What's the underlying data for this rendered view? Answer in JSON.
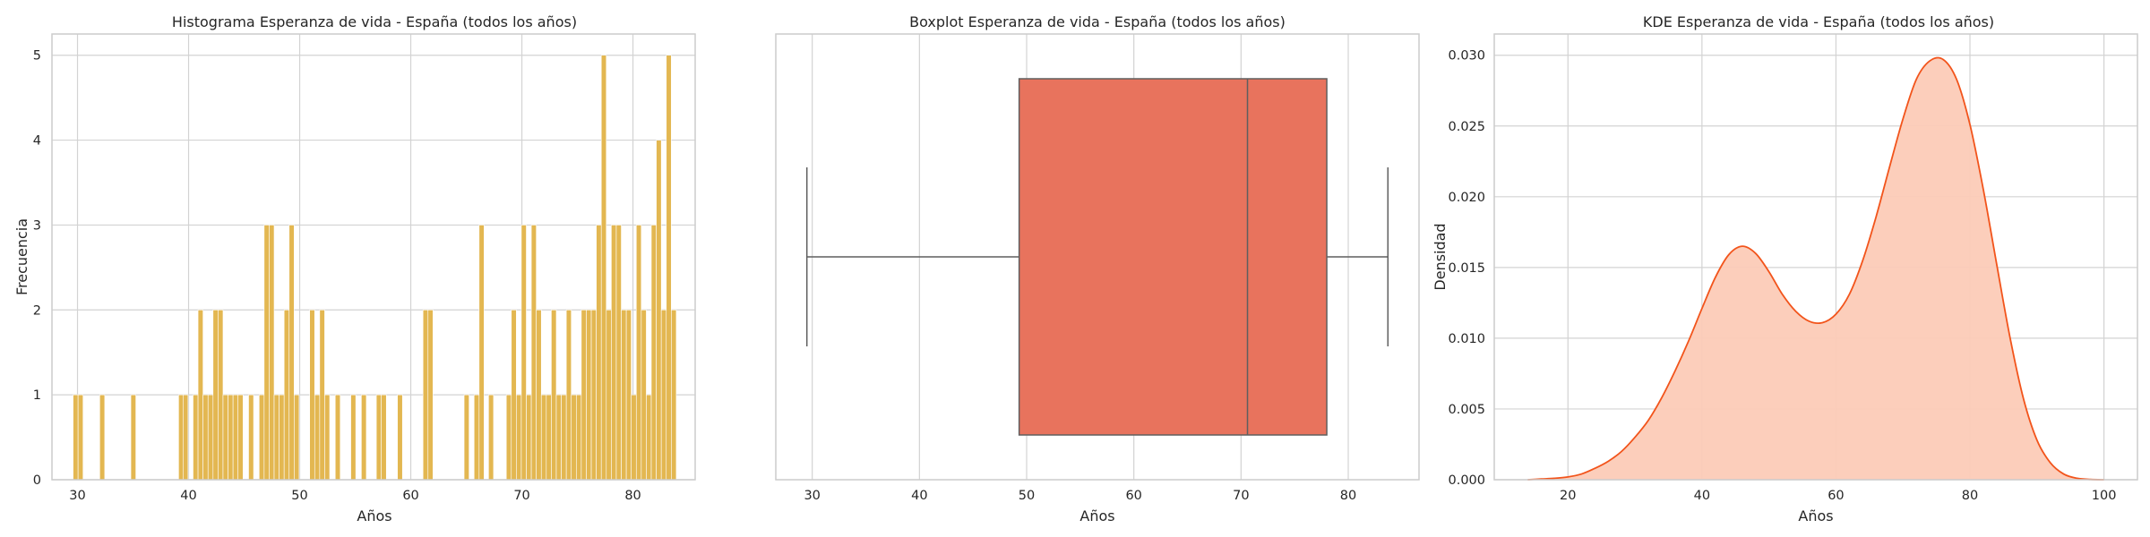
{
  "colors": {
    "hist_bar": "#E3B751",
    "box_fill": "#E8735D",
    "box_line": "#5f5f5f",
    "kde_line": "#F2541B",
    "kde_fill": "#FCCBB7",
    "grid": "#d3d3d3"
  },
  "chart_data": [
    {
      "type": "bar",
      "chart": "histogram",
      "title": "Histograma Esperanza de vida - España (todos los años)",
      "xlabel": "Años",
      "ylabel": "Frecuencia",
      "xlim": [
        27.7,
        85.6
      ],
      "ylim": [
        0,
        5.25
      ],
      "xticks": [
        30,
        40,
        50,
        60,
        70,
        80
      ],
      "yticks": [
        0,
        1,
        2,
        3,
        4,
        5
      ],
      "bin_width": 0.45,
      "bins": [
        {
          "x": 29.6,
          "count": 1
        },
        {
          "x": 30.05,
          "count": 1
        },
        {
          "x": 32.0,
          "count": 1
        },
        {
          "x": 34.8,
          "count": 1
        },
        {
          "x": 39.1,
          "count": 1
        },
        {
          "x": 39.5,
          "count": 1
        },
        {
          "x": 40.4,
          "count": 1
        },
        {
          "x": 40.85,
          "count": 2
        },
        {
          "x": 41.3,
          "count": 1
        },
        {
          "x": 41.75,
          "count": 1
        },
        {
          "x": 42.2,
          "count": 2
        },
        {
          "x": 42.65,
          "count": 2
        },
        {
          "x": 43.1,
          "count": 1
        },
        {
          "x": 43.55,
          "count": 1
        },
        {
          "x": 44.0,
          "count": 1
        },
        {
          "x": 44.45,
          "count": 1
        },
        {
          "x": 45.4,
          "count": 1
        },
        {
          "x": 46.35,
          "count": 1
        },
        {
          "x": 46.8,
          "count": 3
        },
        {
          "x": 47.25,
          "count": 3
        },
        {
          "x": 47.7,
          "count": 1
        },
        {
          "x": 48.15,
          "count": 1
        },
        {
          "x": 48.6,
          "count": 2
        },
        {
          "x": 49.05,
          "count": 3
        },
        {
          "x": 49.5,
          "count": 1
        },
        {
          "x": 50.9,
          "count": 2
        },
        {
          "x": 51.35,
          "count": 1
        },
        {
          "x": 51.8,
          "count": 2
        },
        {
          "x": 52.25,
          "count": 1
        },
        {
          "x": 53.2,
          "count": 1
        },
        {
          "x": 54.6,
          "count": 1
        },
        {
          "x": 55.55,
          "count": 1
        },
        {
          "x": 56.9,
          "count": 1
        },
        {
          "x": 57.35,
          "count": 1
        },
        {
          "x": 58.8,
          "count": 1
        },
        {
          "x": 61.1,
          "count": 2
        },
        {
          "x": 61.55,
          "count": 2
        },
        {
          "x": 64.8,
          "count": 1
        },
        {
          "x": 65.7,
          "count": 1
        },
        {
          "x": 66.15,
          "count": 3
        },
        {
          "x": 67.0,
          "count": 1
        },
        {
          "x": 68.6,
          "count": 1
        },
        {
          "x": 69.05,
          "count": 2
        },
        {
          "x": 69.5,
          "count": 1
        },
        {
          "x": 69.95,
          "count": 3
        },
        {
          "x": 70.4,
          "count": 1
        },
        {
          "x": 70.85,
          "count": 3
        },
        {
          "x": 71.3,
          "count": 2
        },
        {
          "x": 71.75,
          "count": 1
        },
        {
          "x": 72.2,
          "count": 1
        },
        {
          "x": 72.65,
          "count": 2
        },
        {
          "x": 73.1,
          "count": 1
        },
        {
          "x": 73.55,
          "count": 1
        },
        {
          "x": 74.0,
          "count": 2
        },
        {
          "x": 74.45,
          "count": 1
        },
        {
          "x": 74.9,
          "count": 1
        },
        {
          "x": 75.35,
          "count": 2
        },
        {
          "x": 75.8,
          "count": 2
        },
        {
          "x": 76.25,
          "count": 2
        },
        {
          "x": 76.7,
          "count": 3
        },
        {
          "x": 77.15,
          "count": 5
        },
        {
          "x": 77.6,
          "count": 2
        },
        {
          "x": 78.05,
          "count": 3
        },
        {
          "x": 78.5,
          "count": 3
        },
        {
          "x": 78.95,
          "count": 2
        },
        {
          "x": 79.4,
          "count": 2
        },
        {
          "x": 79.85,
          "count": 1
        },
        {
          "x": 80.3,
          "count": 3
        },
        {
          "x": 80.75,
          "count": 2
        },
        {
          "x": 81.2,
          "count": 1
        },
        {
          "x": 81.65,
          "count": 3
        },
        {
          "x": 82.1,
          "count": 4
        },
        {
          "x": 82.55,
          "count": 2
        },
        {
          "x": 83.0,
          "count": 5
        },
        {
          "x": 83.45,
          "count": 2
        }
      ]
    },
    {
      "type": "box",
      "title": "Boxplot Esperanza de vida - España (todos los años)",
      "xlabel": "Años",
      "xlim": [
        26.6,
        86.6
      ],
      "xticks": [
        30,
        40,
        50,
        60,
        70,
        80
      ],
      "whisker_low": 29.5,
      "q1": 49.3,
      "median": 70.6,
      "q3": 78.0,
      "whisker_high": 83.7
    },
    {
      "type": "area",
      "chart": "kde",
      "title": "KDE Esperanza de vida - España (todos los años)",
      "xlabel": "Años",
      "ylabel": "Densidad",
      "xlim": [
        9,
        105
      ],
      "ylim": [
        0,
        0.0315
      ],
      "xticks": [
        20,
        40,
        60,
        80,
        100
      ],
      "yticks": [
        "0.000",
        "0.005",
        "0.010",
        "0.015",
        "0.020",
        "0.025",
        "0.030"
      ],
      "x": [
        14,
        16,
        18,
        20,
        22,
        24,
        26,
        28,
        30,
        32,
        34,
        36,
        38,
        40,
        42,
        44,
        46,
        48,
        50,
        52,
        54,
        56,
        58,
        60,
        62,
        64,
        66,
        68,
        70,
        72,
        74,
        76,
        78,
        80,
        82,
        84,
        86,
        88,
        90,
        92,
        94,
        96,
        98,
        100
      ],
      "y": [
        0,
        5e-05,
        0.0001,
        0.0002,
        0.0004,
        0.0008,
        0.0013,
        0.002,
        0.003,
        0.0042,
        0.0058,
        0.0077,
        0.0098,
        0.0121,
        0.0143,
        0.0159,
        0.0165,
        0.016,
        0.0147,
        0.0131,
        0.0119,
        0.0112,
        0.0111,
        0.0117,
        0.0131,
        0.0155,
        0.0186,
        0.0221,
        0.0255,
        0.0283,
        0.0296,
        0.0297,
        0.0283,
        0.0251,
        0.0205,
        0.0152,
        0.01,
        0.0057,
        0.0028,
        0.0012,
        0.0004,
        0.0001,
        2e-05,
        0
      ]
    }
  ]
}
